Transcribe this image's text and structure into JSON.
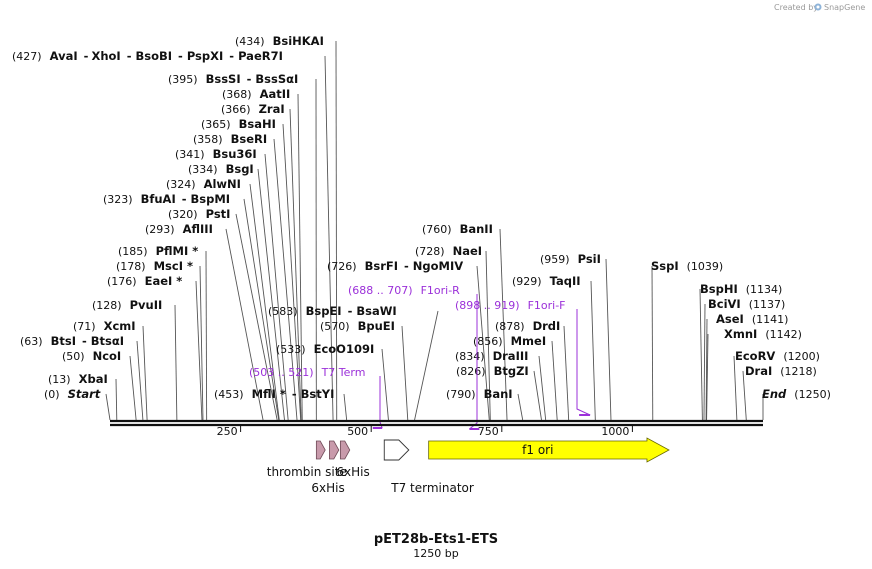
{
  "credit": "Created by",
  "brand": "SnapGene",
  "title": "pET28b-Ets1-ETS",
  "subtitle": "1250 bp",
  "ticks": [
    {
      "label": "250",
      "value": 250
    },
    {
      "label": "500",
      "value": 500
    },
    {
      "label": "750",
      "value": 750
    },
    {
      "label": "1000",
      "value": 1000
    }
  ],
  "sites": [
    {
      "id": "start",
      "pos": "(0)",
      "name": "Start",
      "value": 0,
      "italic": true
    },
    {
      "id": "xbai",
      "pos": "(13)",
      "name": "XbaI",
      "value": 13
    },
    {
      "id": "ncoi",
      "pos": "(50)",
      "name": "NcoI",
      "value": 50
    },
    {
      "id": "btsi",
      "pos": "(63)",
      "name": "BtsI",
      "name2": "BtsαI",
      "value": 63
    },
    {
      "id": "xcmi",
      "pos": "(71)",
      "name": "XcmI",
      "value": 71
    },
    {
      "id": "pvuii",
      "pos": "(128)",
      "name": "PvuII",
      "value": 128
    },
    {
      "id": "eaei",
      "pos": "(176)",
      "name": "EaeI *",
      "value": 176
    },
    {
      "id": "msci",
      "pos": "(178)",
      "name": "MscI *",
      "value": 178
    },
    {
      "id": "pflmi",
      "pos": "(185)",
      "name": "PflMI *",
      "value": 185
    },
    {
      "id": "afliii",
      "pos": "(293)",
      "name": "AflIII",
      "value": 293
    },
    {
      "id": "psti",
      "pos": "(320)",
      "name": "PstI",
      "value": 320
    },
    {
      "id": "bfuai",
      "pos": "(323)",
      "name": "BfuAI",
      "name2": "BspMI",
      "value": 323
    },
    {
      "id": "alwni",
      "pos": "(324)",
      "name": "AlwNI",
      "value": 324
    },
    {
      "id": "bsgi",
      "pos": "(334)",
      "name": "BsgI",
      "value": 334
    },
    {
      "id": "bsu36i",
      "pos": "(341)",
      "name": "Bsu36I",
      "value": 341
    },
    {
      "id": "bseri",
      "pos": "(358)",
      "name": "BseRI",
      "value": 358
    },
    {
      "id": "bsahi",
      "pos": "(365)",
      "name": "BsaHI",
      "value": 365
    },
    {
      "id": "zrai",
      "pos": "(366)",
      "name": "ZraI",
      "value": 366
    },
    {
      "id": "aatii",
      "pos": "(368)",
      "name": "AatII",
      "value": 368
    },
    {
      "id": "bsssi",
      "pos": "(395)",
      "name": "BssSI",
      "name2": "BssSαI",
      "value": 395
    },
    {
      "id": "avai",
      "pos": "(427)",
      "name": "AvaI",
      "name2": "XhoI",
      "name3": "BsoBI",
      "name4": "PspXI",
      "name5": "PaeR7I",
      "value": 427
    },
    {
      "id": "bsihkai",
      "pos": "(434)",
      "name": "BsiHKAI",
      "value": 434
    },
    {
      "id": "mfli",
      "pos": "(453)",
      "name": "MflI *",
      "name2": "BstYI",
      "value": 453
    },
    {
      "id": "eco0109i",
      "pos": "(533)",
      "name": "EcoO109I",
      "value": 533
    },
    {
      "id": "bpuei",
      "pos": "(570)",
      "name": "BpuEI",
      "value": 570
    },
    {
      "id": "bspei",
      "pos": "(583)",
      "name": "BspEI",
      "name2": "BsaWI",
      "value": 583
    },
    {
      "id": "bsrfi",
      "pos": "(726)",
      "name": "BsrFI",
      "name2": "NgoMIV",
      "value": 726
    },
    {
      "id": "naei",
      "pos": "(728)",
      "name": "NaeI",
      "value": 728
    },
    {
      "id": "banii",
      "pos": "(760)",
      "name": "BanII",
      "value": 760
    },
    {
      "id": "bani",
      "pos": "(790)",
      "name": "BanI",
      "value": 790
    },
    {
      "id": "btgzi",
      "pos": "(826)",
      "name": "BtgZI",
      "value": 826
    },
    {
      "id": "draiii",
      "pos": "(834)",
      "name": "DraIII",
      "value": 834
    },
    {
      "id": "mmei",
      "pos": "(856)",
      "name": "MmeI",
      "value": 856
    },
    {
      "id": "drdi",
      "pos": "(878)",
      "name": "DrdI",
      "value": 878
    },
    {
      "id": "taqii",
      "pos": "(929)",
      "name": "TaqII",
      "value": 929
    },
    {
      "id": "psii",
      "pos": "(959)",
      "name": "PsiI",
      "value": 959
    },
    {
      "id": "sspi",
      "pos": "(1039)",
      "name": "SspI",
      "value": 1039
    },
    {
      "id": "bsphi",
      "pos": "(1134)",
      "name": "BspHI",
      "value": 1134
    },
    {
      "id": "bcivi",
      "pos": "(1137)",
      "name": "BciVI",
      "value": 1137
    },
    {
      "id": "asei",
      "pos": "(1141)",
      "name": "AseI",
      "value": 1141
    },
    {
      "id": "xmni",
      "pos": "(1142)",
      "name": "XmnI",
      "value": 1142
    },
    {
      "id": "ecorv",
      "pos": "(1200)",
      "name": "EcoRV",
      "value": 1200
    },
    {
      "id": "drai",
      "pos": "(1218)",
      "name": "DraI",
      "value": 1218
    },
    {
      "id": "end",
      "pos": "(1250)",
      "name": "End",
      "value": 1250,
      "italic": true
    }
  ],
  "primers": [
    {
      "id": "t7-term",
      "range": "(503 .. 521)",
      "name": "T7 Term",
      "start": 503,
      "end": 521
    },
    {
      "id": "f1ori-r",
      "range": "(688 .. 707)",
      "name": "F1ori-R",
      "start": 688,
      "end": 707
    },
    {
      "id": "f1ori-f",
      "range": "(898 .. 919)",
      "name": "F1ori-F",
      "start": 898,
      "end": 919
    }
  ],
  "features": [
    {
      "id": "thrombin-site",
      "label": "thrombin site",
      "start": 395,
      "end": 412
    },
    {
      "id": "6xhis-1",
      "label": "6xHis",
      "start": 420,
      "end": 438
    },
    {
      "id": "6xhis-2",
      "label": "6xHis",
      "start": 441,
      "end": 459
    },
    {
      "id": "t7-terminator",
      "label": "T7 terminator",
      "start": 525,
      "end": 572
    },
    {
      "id": "f1-ori",
      "label": "f1 ori",
      "start": 610,
      "end": 1070
    }
  ],
  "colors": {
    "primer": "#9b30d9",
    "f1ori": "#ffff00",
    "f1ori_stroke": "#666600",
    "his": "#c89aab",
    "his_stroke": "#6e4a57",
    "terminator": "#ffffff",
    "backbone": "#111111",
    "site_line": "#555555"
  }
}
